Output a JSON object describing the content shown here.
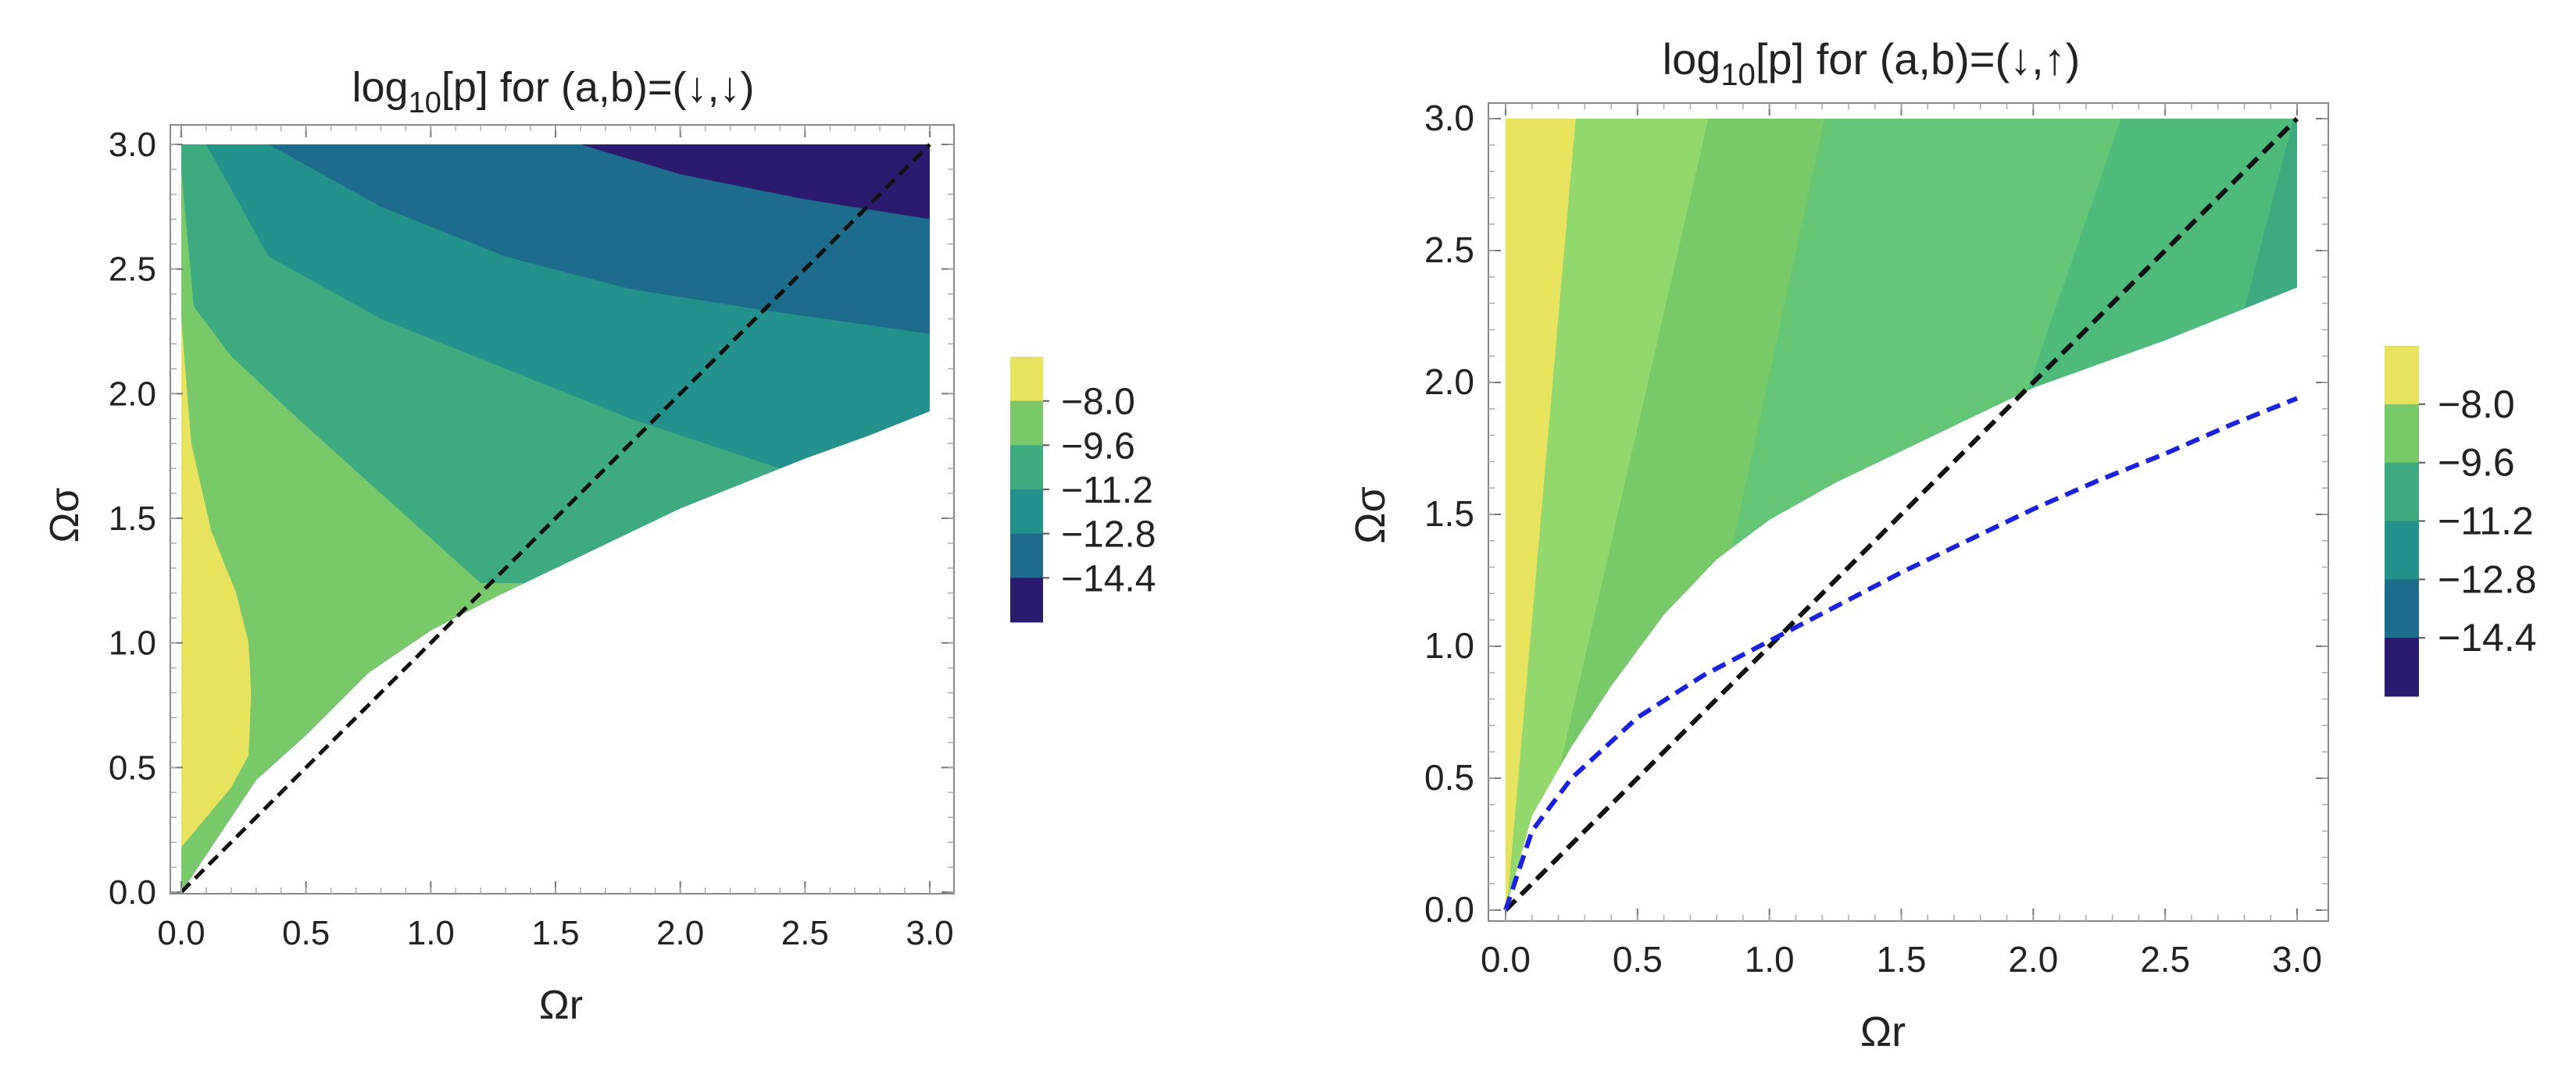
{
  "chart_data": [
    {
      "type": "contour",
      "title": {
        "prefix": "log",
        "subscript": "10",
        "suffix": "[p] for (a,b)=(↓,↓)"
      },
      "xlabel": "Ωr",
      "ylabel": "Ωσ",
      "xlim": [
        0,
        3
      ],
      "ylim": [
        0,
        3
      ],
      "x_ticks": [
        "0.0",
        "0.5",
        "1.0",
        "1.5",
        "2.0",
        "2.5",
        "3.0"
      ],
      "y_ticks": [
        "0.0",
        "0.5",
        "1.0",
        "1.5",
        "2.0",
        "2.5",
        "3.0"
      ],
      "legend": {
        "labels": [
          "−8.0",
          "−9.6",
          "−11.2",
          "−12.8",
          "−14.4"
        ],
        "colors": [
          "#e8e35c",
          "#79c96a",
          "#3daa7f",
          "#23918c",
          "#1d6c8b",
          "#2c1a6e"
        ]
      },
      "region_lower_boundary": {
        "x": [
          0,
          0.3,
          0.5,
          0.75,
          1.0,
          1.25,
          1.5,
          1.75,
          2.0,
          2.25,
          2.5,
          2.75,
          3.0
        ],
        "y": [
          0.0,
          0.45,
          0.63,
          0.88,
          1.05,
          1.18,
          1.3,
          1.42,
          1.54,
          1.64,
          1.74,
          1.83,
          1.93
        ]
      },
      "contour_lines": [
        {
          "level": "-8.0",
          "x": [
            0.0,
            0.1,
            0.2,
            0.27,
            0.28,
            0.27,
            0.22,
            0.12,
            0.04,
            0.0
          ],
          "y": [
            0.18,
            0.3,
            0.42,
            0.55,
            0.8,
            1.0,
            1.2,
            1.45,
            1.8,
            2.3
          ]
        },
        {
          "level": "-9.6",
          "x": [
            0.0,
            0.05,
            0.2,
            0.5,
            0.8,
            1.0,
            1.2
          ],
          "y": [
            2.9,
            2.35,
            2.15,
            1.87,
            1.6,
            1.42,
            1.24
          ]
        },
        {
          "level": "-11.2",
          "x": [
            0.1,
            0.35,
            0.8,
            1.3,
            1.8,
            2.4
          ],
          "y": [
            3.0,
            2.55,
            2.3,
            2.1,
            1.9,
            1.7
          ]
        },
        {
          "level": "-12.8",
          "x": [
            0.35,
            0.8,
            1.3,
            1.8,
            2.3,
            3.0
          ],
          "y": [
            3.0,
            2.75,
            2.55,
            2.42,
            2.34,
            2.24
          ]
        },
        {
          "level": "-14.4",
          "x": [
            1.6,
            2.0,
            2.5,
            3.0
          ],
          "y": [
            3.0,
            2.88,
            2.78,
            2.7
          ]
        }
      ],
      "reference_line": {
        "label": "Ωσ = Ωr",
        "x": [
          0,
          3
        ],
        "y": [
          0,
          3
        ],
        "style": "dashed",
        "color": "#111111"
      }
    },
    {
      "type": "contour",
      "title": {
        "prefix": "log",
        "subscript": "10",
        "suffix": "[p] for (a,b)=(↓,↑)"
      },
      "xlabel": "Ωr",
      "ylabel": "Ωσ",
      "xlim": [
        0,
        3
      ],
      "ylim": [
        0,
        3
      ],
      "x_ticks": [
        "0.0",
        "0.5",
        "1.0",
        "1.5",
        "2.0",
        "2.5",
        "3.0"
      ],
      "y_ticks": [
        "0.0",
        "0.5",
        "1.0",
        "1.5",
        "2.0",
        "2.5",
        "3.0"
      ],
      "legend": {
        "labels": [
          "−8.0",
          "−9.6",
          "−11.2",
          "−12.8",
          "−14.4"
        ],
        "colors": [
          "#e8e35c",
          "#79c96a",
          "#3daa7f",
          "#23918c",
          "#1d6c8b",
          "#2c1a6e"
        ]
      },
      "region_lower_boundary": {
        "x": [
          0,
          0.1,
          0.25,
          0.4,
          0.6,
          0.8,
          1.0,
          1.25,
          1.5,
          1.75,
          2.0,
          2.25,
          2.5,
          2.75,
          3.0
        ],
        "y": [
          0.0,
          0.36,
          0.62,
          0.85,
          1.12,
          1.33,
          1.48,
          1.62,
          1.74,
          1.86,
          1.98,
          2.07,
          2.16,
          2.26,
          2.36
        ]
      },
      "bands": [
        {
          "color": "#e8e35c",
          "x_bottom": 0.0,
          "x_top": 0.27
        },
        {
          "color": "#92d86d",
          "x_bottom": 0.07,
          "x_top": 0.78
        },
        {
          "color": "#79c96a",
          "x_bottom": 0.55,
          "x_top": 1.22
        },
        {
          "color": "#64c575",
          "x_bottom": 1.28,
          "x_top": 2.35
        },
        {
          "color": "#4fbb7b",
          "x_bottom": 2.2,
          "x_top": 3.0
        },
        {
          "color": "#3daa7f",
          "x_bottom": 3.0,
          "x_top": 3.0
        }
      ],
      "reference_line": {
        "label": "Ωσ = Ωr",
        "x": [
          0,
          3
        ],
        "y": [
          0,
          3
        ],
        "style": "dashed",
        "color": "#111111"
      },
      "extra_curve": {
        "label": "blue dashed curve",
        "x": [
          0,
          0.1,
          0.25,
          0.5,
          0.75,
          1.0,
          1.25,
          1.5,
          1.75,
          2.0,
          2.25,
          2.5,
          2.75,
          3.0
        ],
        "y": [
          0.0,
          0.3,
          0.5,
          0.73,
          0.89,
          1.02,
          1.15,
          1.28,
          1.4,
          1.52,
          1.63,
          1.73,
          1.84,
          1.94
        ],
        "style": "dashed",
        "color": "#1a22dd"
      }
    }
  ]
}
